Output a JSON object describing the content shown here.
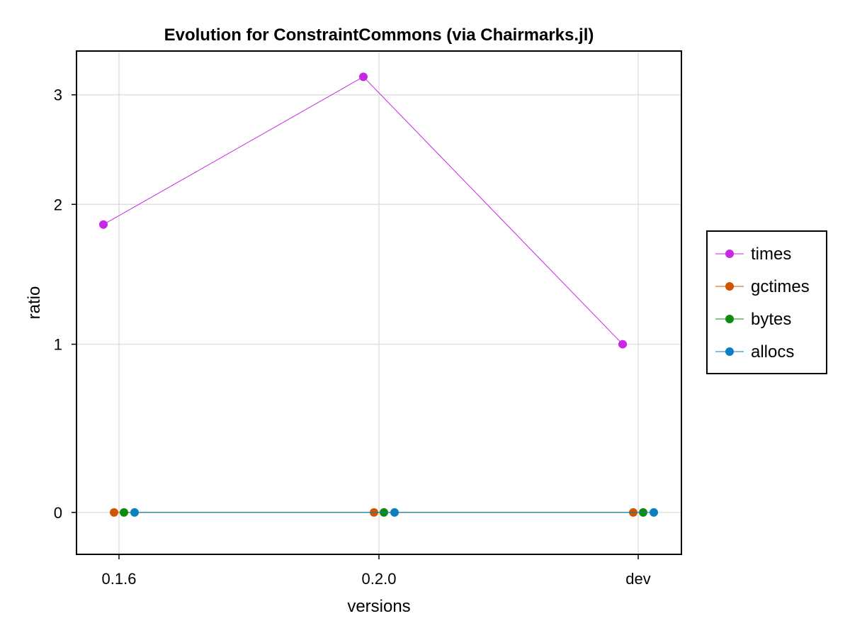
{
  "chart_data": {
    "type": "line",
    "title": "Evolution for ConstraintCommons (via Chairmarks.jl)",
    "xlabel": "versions",
    "ylabel": "ratio",
    "categories": [
      "0.1.6",
      "0.2.0",
      "dev"
    ],
    "y_ticks": [
      0,
      1,
      2,
      3
    ],
    "y_scale": "asinh",
    "grid": true,
    "legend_placement": "right",
    "series": [
      {
        "name": "times",
        "color": "#c827e3",
        "values": [
          1.84,
          3.19,
          1.0
        ]
      },
      {
        "name": "gctimes",
        "color": "#d35400",
        "values": [
          0,
          0,
          0
        ]
      },
      {
        "name": "bytes",
        "color": "#0f8b0f",
        "values": [
          0,
          0,
          0
        ]
      },
      {
        "name": "allocs",
        "color": "#0b7fbf",
        "values": [
          0,
          0,
          0
        ]
      }
    ]
  }
}
